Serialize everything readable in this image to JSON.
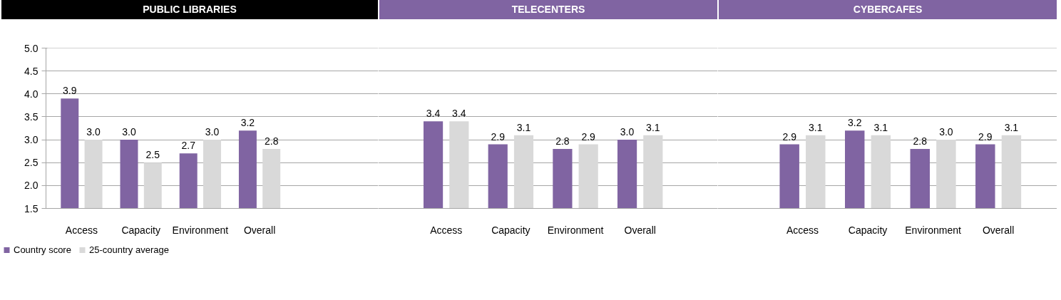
{
  "chart_data": [
    {
      "type": "bar",
      "title": "PUBLIC LIBRARIES",
      "categories": [
        "Access",
        "Capacity",
        "Environment",
        "Overall"
      ],
      "series": [
        {
          "name": "Country score",
          "color": "#8064a2",
          "values": [
            3.9,
            3.0,
            2.7,
            3.2
          ],
          "value_labels": [
            "3.9",
            "3.0",
            "2.7",
            "3.2"
          ]
        },
        {
          "name": "25-country average",
          "color": "#d9d9d9",
          "values": [
            3.0,
            2.5,
            3.0,
            2.8
          ],
          "value_labels": [
            "3.0",
            "2.5",
            "3.0",
            "2.8"
          ]
        }
      ],
      "ylim": [
        1.5,
        5.0
      ],
      "yticks": [
        {
          "value": 1.5,
          "label": "1.5"
        },
        {
          "value": 2.0,
          "label": "2.0"
        },
        {
          "value": 2.5,
          "label": "2.5"
        },
        {
          "value": 3.0,
          "label": "3.0"
        },
        {
          "value": 3.5,
          "label": "3.5"
        },
        {
          "value": 4.0,
          "label": "4.0"
        },
        {
          "value": 4.5,
          "label": "4.5"
        },
        {
          "value": 5.0,
          "label": "5.0"
        }
      ],
      "grid": "y",
      "legend": "bottom"
    },
    {
      "type": "bar",
      "title": "TELECENTERS",
      "categories": [
        "Access",
        "Capacity",
        "Environment",
        "Overall"
      ],
      "series": [
        {
          "color": "#8064a2",
          "values": [
            3.4,
            2.9,
            2.8,
            3.0
          ],
          "value_labels": [
            "3.4",
            "2.9",
            "2.8",
            "3.0"
          ]
        },
        {
          "color": "#d9d9d9",
          "values": [
            3.4,
            3.1,
            2.9,
            3.1
          ],
          "value_labels": [
            "3.4",
            "3.1",
            "2.9",
            "3.1"
          ]
        }
      ],
      "ylim": [
        1.5,
        5.0
      ],
      "grid": "y",
      "tick_labels": "x"
    },
    {
      "type": "bar",
      "title": "CYBERCAFES",
      "categories": [
        "Access",
        "Capacity",
        "Environment",
        "Overall"
      ],
      "series": [
        {
          "color": "#8064a2",
          "values": [
            2.9,
            3.2,
            2.8,
            2.9
          ],
          "value_labels": [
            "2.9",
            "3.2",
            "2.8",
            "2.9"
          ]
        },
        {
          "color": "#d9d9d9",
          "values": [
            3.1,
            3.1,
            3.0,
            3.1
          ],
          "value_labels": [
            "3.1",
            "3.1",
            "3.0",
            "3.1"
          ]
        }
      ],
      "ylim": [
        1.5,
        5.0
      ],
      "grid": "y",
      "tick_labels": "x"
    }
  ]
}
